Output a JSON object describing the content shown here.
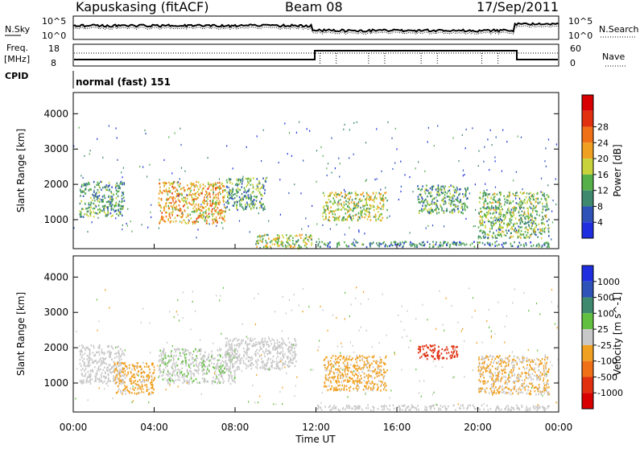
{
  "header": {
    "station": "Kapuskasing (fitACF)",
    "beam": "Beam 08",
    "date": "17/Sep/2011",
    "cpid_label": "CPID",
    "cpid_value": "normal (fast) 151"
  },
  "noise_panel": {
    "left_label": "N.Sky",
    "right_label": "N.Search",
    "left_ticks": [
      "10^5",
      "10^0"
    ],
    "right_ticks": [
      "10^5",
      "10^0"
    ]
  },
  "freq_panel": {
    "left_label_1": "Freq.",
    "left_label_2": "[MHz]",
    "right_label": "Nave",
    "left_ticks": [
      "18",
      "8"
    ],
    "right_ticks": [
      "60",
      "0"
    ]
  },
  "x_axis": {
    "label": "Time UT",
    "ticks": [
      "00:00",
      "04:00",
      "08:00",
      "12:00",
      "16:00",
      "20:00",
      "00:00"
    ]
  },
  "panels": [
    {
      "ylabel": "Slant Range [km]",
      "yticks": [
        "1000",
        "2000",
        "3000",
        "4000"
      ],
      "colorbar_label": "Power [dB]",
      "colorbar_ticks": [
        "4",
        "8",
        "12",
        "16",
        "20",
        "24",
        "28"
      ],
      "colors": [
        "#1f2fe0",
        "#2e52b8",
        "#3f8a6e",
        "#55b04a",
        "#c8d23a",
        "#f0a020",
        "#f07018",
        "#e03010",
        "#d80000"
      ]
    },
    {
      "ylabel": "Slant Range [km]",
      "yticks": [
        "1000",
        "2000",
        "3000",
        "4000"
      ],
      "colorbar_label": "Velocity [m s^-1]",
      "colorbar_ticks": [
        "1000",
        "500",
        "100",
        "25",
        "-25",
        "-100",
        "-500",
        "-1000"
      ],
      "colors": [
        "#1f2fe0",
        "#2e52b8",
        "#3f8a6e",
        "#62c040",
        "#c8c8c8",
        "#f0a020",
        "#f07018",
        "#e03010",
        "#d80000"
      ]
    }
  ],
  "chart_data": [
    {
      "type": "heatmap",
      "title": "",
      "xlabel": "Time UT",
      "ylabel": "Slant Range [km]",
      "xlim": [
        0,
        24
      ],
      "ylim": [
        180,
        4600
      ],
      "legend": "Power [dB]",
      "colorbar_range": [
        0,
        30
      ],
      "grid": false,
      "regions": [
        {
          "t": [
            0.3,
            2.5
          ],
          "r": [
            1100,
            2100
          ],
          "value": 10
        },
        {
          "t": [
            4.2,
            7.5
          ],
          "r": [
            900,
            2100
          ],
          "value": 18
        },
        {
          "t": [
            7.5,
            9.5
          ],
          "r": [
            1300,
            2200
          ],
          "value": 10
        },
        {
          "t": [
            9.0,
            11.8
          ],
          "r": [
            200,
            600
          ],
          "value": 14
        },
        {
          "t": [
            12.3,
            15.5
          ],
          "r": [
            1000,
            1800
          ],
          "value": 14
        },
        {
          "t": [
            12.0,
            23.5
          ],
          "r": [
            250,
            400
          ],
          "value": 8
        },
        {
          "t": [
            17.0,
            19.5
          ],
          "r": [
            1200,
            2000
          ],
          "value": 10
        },
        {
          "t": [
            20.0,
            23.5
          ],
          "r": [
            500,
            1800
          ],
          "value": 12
        }
      ]
    },
    {
      "type": "heatmap",
      "title": "",
      "xlabel": "Time UT",
      "ylabel": "Slant Range [km]",
      "xlim": [
        0,
        24
      ],
      "ylim": [
        180,
        4600
      ],
      "legend": "Velocity [m s^-1]",
      "colorbar_range": [
        -1000,
        1000
      ],
      "grid": false,
      "regions": [
        {
          "t": [
            0.3,
            2.5
          ],
          "r": [
            1000,
            2100
          ],
          "value": -50
        },
        {
          "t": [
            2.0,
            4.0
          ],
          "r": [
            700,
            1600
          ],
          "value": -150
        },
        {
          "t": [
            4.2,
            8.0
          ],
          "r": [
            1000,
            2000
          ],
          "value": 80
        },
        {
          "t": [
            7.5,
            11.0
          ],
          "r": [
            1400,
            2300
          ],
          "value": 0
        },
        {
          "t": [
            12.3,
            15.5
          ],
          "r": [
            800,
            1800
          ],
          "value": -150
        },
        {
          "t": [
            17.0,
            19.0
          ],
          "r": [
            1700,
            2100
          ],
          "value": -700
        },
        {
          "t": [
            20.0,
            23.5
          ],
          "r": [
            700,
            1800
          ],
          "value": -120
        },
        {
          "t": [
            12.0,
            23.5
          ],
          "r": [
            250,
            400
          ],
          "value": 0
        }
      ]
    }
  ]
}
